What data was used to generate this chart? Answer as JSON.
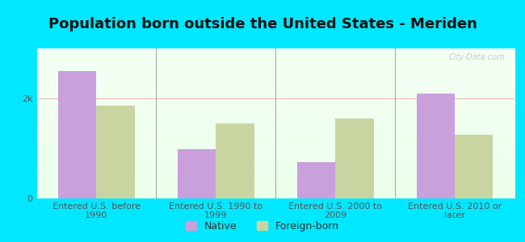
{
  "title": "Population born outside the United States - Meriden",
  "categories": [
    "Entered U.S. before\n1990",
    "Entered U.S. 1990 to\n1999",
    "Entered U.S. 2000 to\n2009",
    "Entered U.S. 2010 or\nlater"
  ],
  "native_values": [
    2550,
    980,
    720,
    2100
  ],
  "foreign_values": [
    1850,
    1500,
    1600,
    1280
  ],
  "native_color": "#c9a0dc",
  "foreign_color": "#c8d5a0",
  "background_outer": "#00e8ff",
  "title_fontsize": 13,
  "tick_label_fontsize": 8,
  "legend_fontsize": 9,
  "ylim": [
    0,
    3000
  ],
  "yticks": [
    0,
    2000
  ],
  "ytick_labels": [
    "0",
    "2k"
  ],
  "watermark": "City-Data.com",
  "bar_width": 0.32
}
